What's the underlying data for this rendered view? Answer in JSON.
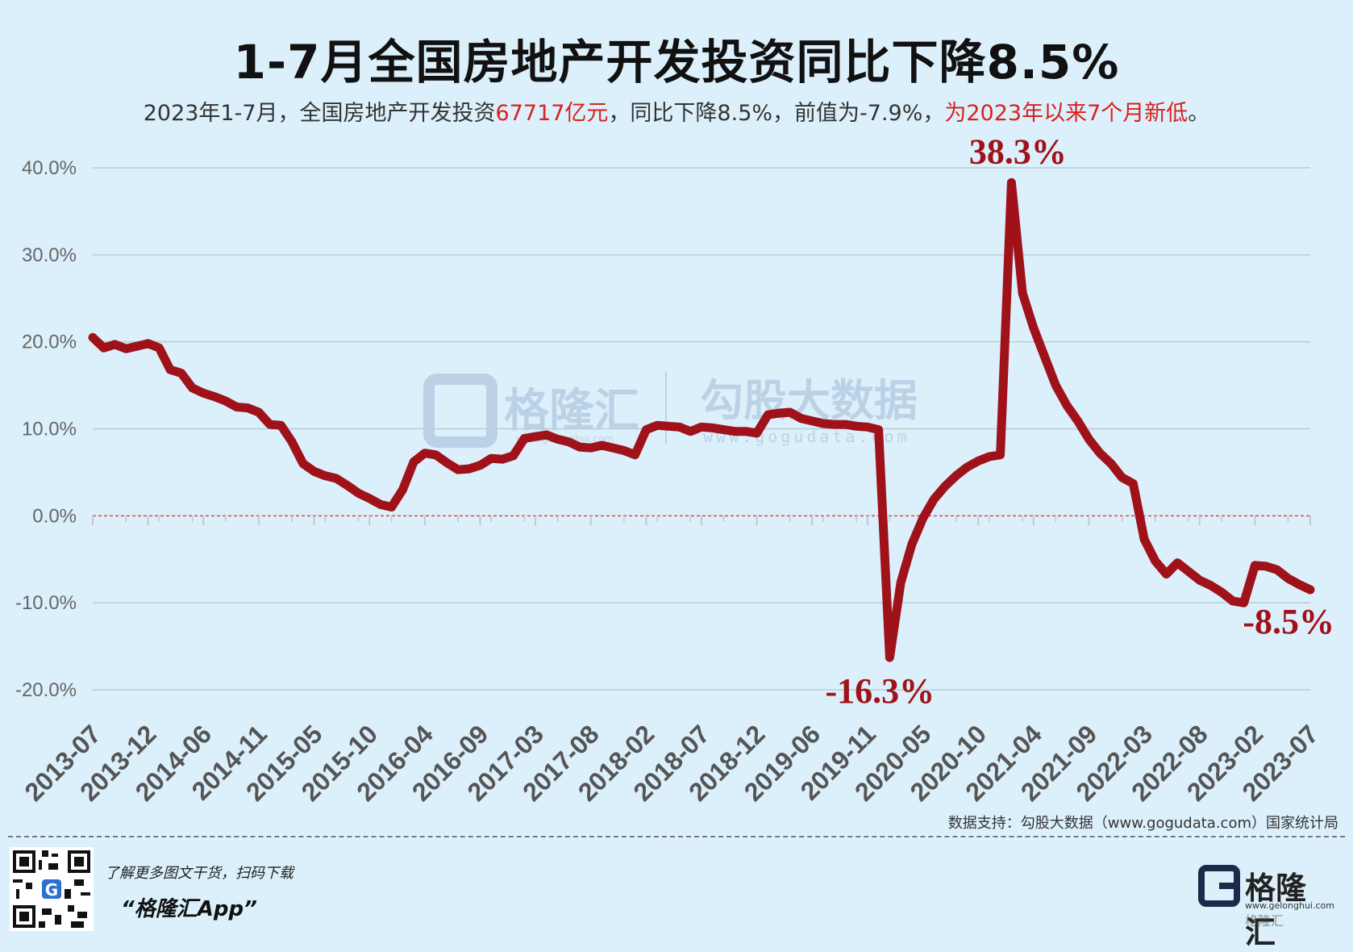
{
  "title": "1-7月全国房地产开发投资同比下降8.5%",
  "subtitle": {
    "part1": "2023年1-7月，全国房地产开发投资",
    "highlight1": "67717亿元",
    "part2": "，同比下降8.5%，前值为-7.9%，",
    "highlight2": "为2023年以来7个月新低",
    "part3": "。"
  },
  "colors": {
    "background": "#dcf0fb",
    "line": "#a0121a",
    "highlight_text": "#d9201e",
    "gridline": "#b7ccd8",
    "zero_line": "#e0484a"
  },
  "watermark": {
    "brand": "格隆汇",
    "brand_url": "www.gelonghui.com",
    "partner": "勾股大数据",
    "partner_url": "www.gogudata.com"
  },
  "source": "数据支持：勾股大数据（www.gogudata.com）国家统计局",
  "footer": {
    "promo_text": "了解更多图文干货，扫码下载",
    "app_name": "“格隆汇App”",
    "brand_name": "格隆汇",
    "brand_url": "www.gelonghui.com",
    "brand_sub": "格隆汇"
  },
  "chart_data": {
    "type": "line",
    "title": "1-7月全国房地产开发投资同比下降8.5%",
    "xlabel": "",
    "ylabel": "",
    "ylim": [
      -20,
      40
    ],
    "yticks": [
      40,
      30,
      20,
      10,
      0,
      -10,
      -20
    ],
    "ytick_labels": [
      "40.0%",
      "30.0%",
      "20.0%",
      "10.0%",
      "0.0%",
      "-10.0%",
      "-20.0%"
    ],
    "grid": true,
    "legend": "none",
    "xtick_labels": [
      "2013-07",
      "2013-12",
      "2014-06",
      "2014-11",
      "2015-05",
      "2015-10",
      "2016-04",
      "2016-09",
      "2017-03",
      "2017-08",
      "2018-02",
      "2018-07",
      "2018-12",
      "2019-06",
      "2019-11",
      "2020-05",
      "2020-10",
      "2021-04",
      "2021-09",
      "2022-03",
      "2022-08",
      "2023-02",
      "2023-07"
    ],
    "series": [
      {
        "name": "",
        "color": "#a0121a",
        "x": [
          "2013-07",
          "2013-08",
          "2013-09",
          "2013-10",
          "2013-11",
          "2013-12",
          "2014-02",
          "2014-03",
          "2014-04",
          "2014-05",
          "2014-06",
          "2014-07",
          "2014-08",
          "2014-09",
          "2014-10",
          "2014-11",
          "2014-12",
          "2015-02",
          "2015-03",
          "2015-04",
          "2015-05",
          "2015-06",
          "2015-07",
          "2015-08",
          "2015-09",
          "2015-10",
          "2015-11",
          "2015-12",
          "2016-02",
          "2016-03",
          "2016-04",
          "2016-05",
          "2016-06",
          "2016-07",
          "2016-08",
          "2016-09",
          "2016-10",
          "2016-11",
          "2016-12",
          "2017-02",
          "2017-03",
          "2017-04",
          "2017-05",
          "2017-06",
          "2017-07",
          "2017-08",
          "2017-09",
          "2017-10",
          "2017-11",
          "2017-12",
          "2018-02",
          "2018-03",
          "2018-04",
          "2018-05",
          "2018-06",
          "2018-07",
          "2018-08",
          "2018-09",
          "2018-10",
          "2018-11",
          "2018-12",
          "2019-02",
          "2019-03",
          "2019-04",
          "2019-05",
          "2019-06",
          "2019-07",
          "2019-08",
          "2019-09",
          "2019-10",
          "2019-11",
          "2019-12",
          "2020-02",
          "2020-03",
          "2020-04",
          "2020-05",
          "2020-06",
          "2020-07",
          "2020-08",
          "2020-09",
          "2020-10",
          "2020-11",
          "2020-12",
          "2021-02",
          "2021-03",
          "2021-04",
          "2021-05",
          "2021-06",
          "2021-07",
          "2021-08",
          "2021-09",
          "2021-10",
          "2021-11",
          "2021-12",
          "2022-02",
          "2022-03",
          "2022-04",
          "2022-05",
          "2022-06",
          "2022-07",
          "2022-08",
          "2022-09",
          "2022-10",
          "2022-11",
          "2022-12",
          "2023-02",
          "2023-03",
          "2023-04",
          "2023-05",
          "2023-06",
          "2023-07"
        ],
        "y": [
          20.5,
          19.3,
          19.7,
          19.2,
          19.5,
          19.8,
          19.3,
          16.8,
          16.4,
          14.7,
          14.1,
          13.7,
          13.2,
          12.5,
          12.4,
          11.9,
          10.5,
          10.4,
          8.5,
          6.0,
          5.1,
          4.6,
          4.3,
          3.5,
          2.6,
          2.0,
          1.3,
          1.0,
          3.0,
          6.2,
          7.2,
          7.0,
          6.1,
          5.3,
          5.4,
          5.8,
          6.6,
          6.5,
          6.9,
          8.9,
          9.1,
          9.3,
          8.8,
          8.5,
          7.9,
          7.8,
          8.1,
          7.8,
          7.5,
          7.0,
          9.9,
          10.4,
          10.3,
          10.2,
          9.7,
          10.2,
          10.1,
          9.9,
          9.7,
          9.7,
          9.5,
          11.6,
          11.8,
          11.9,
          11.2,
          10.9,
          10.6,
          10.5,
          10.5,
          10.3,
          10.2,
          9.9,
          -16.3,
          -7.7,
          -3.3,
          -0.3,
          1.9,
          3.4,
          4.6,
          5.6,
          6.3,
          6.8,
          7.0,
          38.3,
          25.6,
          21.6,
          18.3,
          15.0,
          12.7,
          10.9,
          8.8,
          7.2,
          6.0,
          4.4,
          3.7,
          -2.7,
          -5.2,
          -6.7,
          -5.4,
          -6.4,
          -7.4,
          -8.0,
          -8.8,
          -9.8,
          -10.0,
          -5.7,
          -5.8,
          -6.2,
          -7.2,
          -7.9,
          -8.5
        ]
      }
    ],
    "annotations": [
      {
        "text": "38.3%",
        "x": "2021-02",
        "y": 38.3
      },
      {
        "text": "-16.3%",
        "x": "2020-02",
        "y": -16.3
      },
      {
        "text": "-8.5%",
        "x": "2023-07",
        "y": -8.5
      }
    ]
  }
}
